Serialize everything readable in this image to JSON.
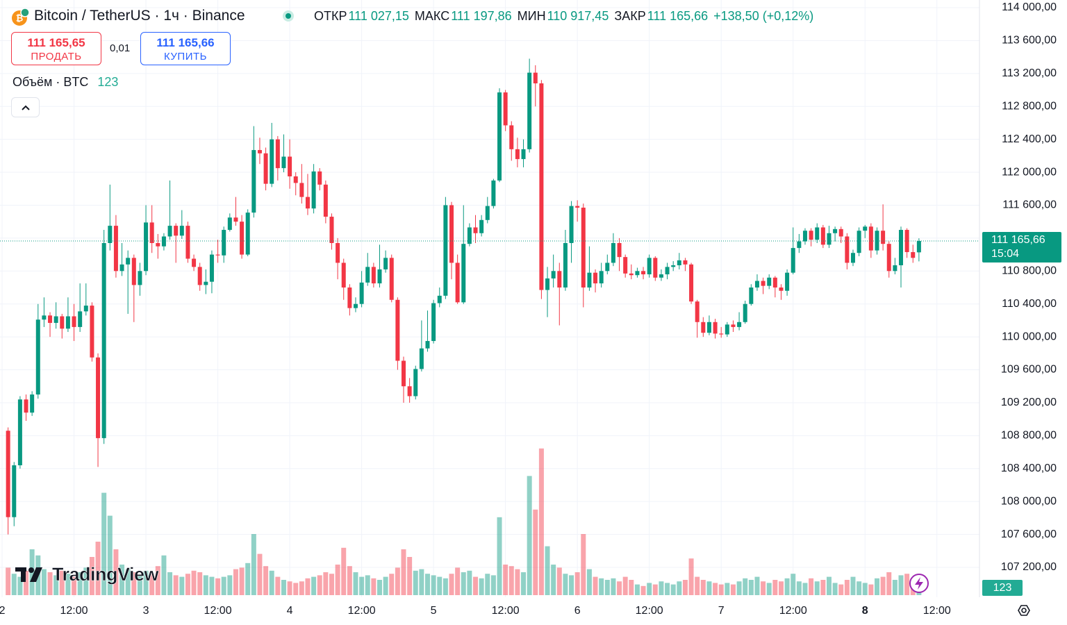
{
  "header": {
    "symbol": "Bitcoin / TetherUS · 1ч · Binance",
    "ohlc": [
      {
        "label": "ОТКР",
        "value": "111 027,15"
      },
      {
        "label": "МАКС",
        "value": "111 197,86"
      },
      {
        "label": "МИН",
        "value": "110 917,45"
      },
      {
        "label": "ЗАКР",
        "value": "111 165,66"
      }
    ],
    "change": "+138,50 (+0,12%)"
  },
  "trade": {
    "sell_price": "111 165,65",
    "sell": "ПРОДАТЬ",
    "spread": "0,01",
    "buy_price": "111 165,66",
    "buy": "КУПИТЬ"
  },
  "volume_legend": {
    "label": "Объём · BTC",
    "value": "123"
  },
  "logo": "TradingView",
  "price_tag": {
    "price": "111 165,66",
    "countdown": "15:04"
  },
  "volume_tag": "123",
  "chart_data": {
    "type": "candlestick",
    "open": [
      108860,
      107810,
      108440,
      109240,
      109080,
      109300,
      110210,
      110260,
      110170,
      110250,
      110100,
      110250,
      110120,
      110310,
      110380,
      109750,
      108770,
      111140,
      111350,
      110800,
      110880,
      110960,
      110630,
      110800,
      111390,
      111140,
      111100,
      111220,
      111350,
      111230,
      111350,
      110950,
      110850,
      110630,
      110670,
      111000,
      110990,
      111300,
      111450,
      111400,
      111000,
      111510,
      112270,
      112230,
      111860,
      112400,
      112050,
      112190,
      111950,
      111870,
      111700,
      111560,
      112010,
      111850,
      111460,
      111140,
      110900,
      110600,
      110350,
      110400,
      110660,
      110850,
      110650,
      110820,
      110960,
      110450,
      109710,
      109400,
      109280,
      109610,
      109860,
      109950,
      110410,
      110500,
      111600,
      110900,
      110420,
      111130,
      111330,
      111260,
      111420,
      111590,
      111900,
      112970,
      112570,
      112280,
      112160,
      112280,
      113210,
      113080,
      110570,
      110710,
      110800,
      110600,
      111140,
      111590,
      111570,
      110600,
      110780,
      110650,
      110800,
      110900,
      111140,
      110970,
      110770,
      110750,
      110800,
      110760,
      110960,
      110720,
      110760,
      110850,
      110870,
      110930,
      110880,
      110430,
      110180,
      110050,
      110180,
      110040,
      110030,
      110150,
      110120,
      110180,
      110400,
      110600,
      110680,
      110620,
      110720,
      110600,
      110560,
      110780,
      111080,
      111160,
      111290,
      111180,
      111330,
      111120,
      111260,
      111310,
      111220,
      110900,
      111020,
      111290,
      111340,
      111050,
      111290,
      111130,
      110800,
      110870,
      111300,
      111030,
      111027.15
    ],
    "high": [
      108900,
      108480,
      109280,
      109300,
      109340,
      110400,
      110480,
      110300,
      110420,
      110280,
      110480,
      110400,
      110650,
      110650,
      110420,
      109800,
      111300,
      111850,
      111480,
      111140,
      111050,
      111000,
      110900,
      111600,
      111600,
      111250,
      111260,
      111900,
      111380,
      111540,
      111400,
      111000,
      110900,
      110820,
      111050,
      111180,
      111340,
      111500,
      111700,
      111480,
      111550,
      112560,
      112420,
      112300,
      112600,
      112440,
      112460,
      112400,
      112000,
      112100,
      111980,
      112100,
      112050,
      111900,
      111500,
      111200,
      110950,
      110640,
      110480,
      110800,
      111020,
      110900,
      111120,
      111050,
      111000,
      110480,
      109760,
      109500,
      109650,
      110200,
      110320,
      110450,
      110600,
      111700,
      111640,
      111000,
      111600,
      111380,
      111480,
      111480,
      111700,
      111920,
      113020,
      113000,
      112620,
      112420,
      112400,
      113380,
      113300,
      113120,
      110850,
      111000,
      110900,
      111300,
      111650,
      111660,
      111620,
      111100,
      110820,
      110900,
      111000,
      111260,
      111200,
      111000,
      110880,
      110840,
      110850,
      111000,
      110980,
      110820,
      110900,
      110920,
      111020,
      110960,
      110900,
      110450,
      110240,
      110260,
      110220,
      110120,
      110180,
      110200,
      110300,
      110440,
      110640,
      110760,
      110720,
      110760,
      110740,
      110640,
      110820,
      111330,
      111250,
      111320,
      111320,
      111380,
      111360,
      111350,
      111340,
      111340,
      111260,
      111060,
      111330,
      111360,
      111380,
      111330,
      111610,
      111160,
      110960,
      111340,
      111320,
      111120,
      111197.86
    ],
    "low": [
      107600,
      107700,
      108400,
      108980,
      109040,
      109250,
      110120,
      110000,
      110100,
      109980,
      110060,
      109950,
      110060,
      110260,
      109700,
      108420,
      108700,
      111050,
      110720,
      110740,
      110280,
      110180,
      110500,
      110750,
      111020,
      110950,
      111050,
      111180,
      110900,
      111190,
      110900,
      110800,
      110560,
      110520,
      110530,
      110900,
      110900,
      111280,
      111350,
      110950,
      110980,
      111450,
      112100,
      111780,
      111820,
      111900,
      112000,
      111800,
      111720,
      111620,
      111480,
      111500,
      111780,
      111380,
      111060,
      110700,
      110450,
      110260,
      110300,
      110360,
      110620,
      110600,
      110600,
      110780,
      110420,
      109600,
      109200,
      109200,
      109240,
      109580,
      109820,
      109920,
      110360,
      110460,
      110700,
      110400,
      110400,
      111100,
      111140,
      111220,
      111380,
      111560,
      111880,
      112500,
      112140,
      112060,
      112060,
      112240,
      112800,
      110460,
      110240,
      110600,
      110140,
      110560,
      110900,
      111400,
      110360,
      110560,
      110540,
      110600,
      110760,
      110860,
      110800,
      110720,
      110700,
      110720,
      110700,
      110720,
      110680,
      110680,
      110700,
      110800,
      110820,
      110800,
      110400,
      109990,
      110000,
      110020,
      109980,
      109990,
      110000,
      110060,
      110080,
      110160,
      110380,
      110560,
      110520,
      110580,
      110480,
      110450,
      110500,
      110760,
      111020,
      111120,
      111100,
      111140,
      111080,
      111080,
      111160,
      111140,
      110820,
      110860,
      110980,
      111200,
      110960,
      111000,
      111050,
      110720,
      110760,
      110600,
      110960,
      110900,
      110917.45
    ],
    "close": [
      107810,
      108440,
      109240,
      109080,
      109300,
      110210,
      110260,
      110170,
      110250,
      110100,
      110250,
      110120,
      110310,
      110380,
      109750,
      108770,
      111140,
      111350,
      110800,
      110880,
      110960,
      110630,
      110800,
      111390,
      111140,
      111100,
      111220,
      111350,
      111230,
      111350,
      110950,
      110850,
      110630,
      110670,
      111000,
      110990,
      111300,
      111450,
      111400,
      111000,
      111510,
      112270,
      112230,
      111860,
      112400,
      112050,
      112190,
      111950,
      111870,
      111700,
      111560,
      112010,
      111850,
      111460,
      111140,
      110900,
      110600,
      110350,
      110400,
      110660,
      110850,
      110650,
      110820,
      110960,
      110450,
      109710,
      109400,
      109280,
      109610,
      109860,
      109950,
      110410,
      110500,
      111600,
      110900,
      110420,
      111130,
      111330,
      111260,
      111420,
      111590,
      111900,
      112970,
      112570,
      112280,
      112160,
      112280,
      113210,
      113080,
      110570,
      110710,
      110800,
      110600,
      111140,
      111590,
      111570,
      110600,
      110780,
      110650,
      110800,
      110900,
      111140,
      110970,
      110770,
      110750,
      110800,
      110760,
      110960,
      110720,
      110760,
      110850,
      110870,
      110930,
      110880,
      110430,
      110180,
      110050,
      110180,
      110040,
      110030,
      110150,
      110120,
      110180,
      110400,
      110600,
      110680,
      110620,
      110720,
      110600,
      110560,
      110780,
      111080,
      111160,
      111290,
      111180,
      111330,
      111120,
      111260,
      111310,
      111220,
      110900,
      111020,
      111290,
      111340,
      111050,
      111290,
      111130,
      110800,
      110870,
      111300,
      111030,
      110960,
      111165.66
    ],
    "volume": [
      180,
      140,
      120,
      160,
      300,
      260,
      170,
      150,
      130,
      160,
      140,
      120,
      150,
      180,
      250,
      350,
      670,
      520,
      300,
      200,
      170,
      150,
      130,
      160,
      140,
      190,
      260,
      150,
      130,
      120,
      140,
      160,
      150,
      130,
      120,
      110,
      120,
      130,
      170,
      180,
      210,
      400,
      270,
      190,
      160,
      120,
      100,
      90,
      80,
      90,
      110,
      120,
      130,
      150,
      140,
      200,
      310,
      190,
      150,
      120,
      130,
      110,
      100,
      120,
      140,
      180,
      300,
      250,
      160,
      170,
      140,
      130,
      120,
      110,
      140,
      180,
      150,
      160,
      120,
      110,
      140,
      130,
      510,
      200,
      190,
      170,
      150,
      780,
      560,
      960,
      320,
      200,
      180,
      140,
      130,
      150,
      400,
      170,
      120,
      110,
      100,
      110,
      90,
      120,
      100,
      70,
      60,
      80,
      70,
      90,
      80,
      70,
      90,
      100,
      240,
      120,
      100,
      90,
      80,
      70,
      80,
      70,
      90,
      110,
      100,
      120,
      90,
      80,
      100,
      90,
      110,
      140,
      90,
      80,
      110,
      90,
      100,
      120,
      80,
      70,
      100,
      120,
      90,
      80,
      70,
      110,
      120,
      150,
      100,
      130,
      140,
      110,
      123
    ],
    "up_color": "#089981",
    "down_color": "#f23645",
    "ylim": [
      107200,
      114000
    ],
    "yticks": [
      {
        "value": 107200,
        "label": "107 200,00"
      },
      {
        "value": 107600,
        "label": "107 600,00"
      },
      {
        "value": 108000,
        "label": "108 000,00"
      },
      {
        "value": 108400,
        "label": "108 400,00"
      },
      {
        "value": 108800,
        "label": "108 800,00"
      },
      {
        "value": 109200,
        "label": "109 200,00"
      },
      {
        "value": 109600,
        "label": "109 600,00"
      },
      {
        "value": 110000,
        "label": "110 000,00"
      },
      {
        "value": 110400,
        "label": "110 400,00"
      },
      {
        "value": 110800,
        "label": "110 800,00"
      },
      {
        "value": 111200,
        "label": "111 200,00"
      },
      {
        "value": 111600,
        "label": "111 600,00"
      },
      {
        "value": 112000,
        "label": "112 000,00"
      },
      {
        "value": 112400,
        "label": "112 400,00"
      },
      {
        "value": 112800,
        "label": "112 800,00"
      },
      {
        "value": 113200,
        "label": "113 200,00"
      },
      {
        "value": 113600,
        "label": "113 600,00"
      },
      {
        "value": 114000,
        "label": "114 000,00"
      }
    ],
    "xlim": [
      -1.35,
      162.1
    ],
    "xticks": [
      {
        "value": -1,
        "label": "2"
      },
      {
        "value": 11,
        "label": "12:00"
      },
      {
        "value": 23,
        "label": "3"
      },
      {
        "value": 35,
        "label": "12:00"
      },
      {
        "value": 47,
        "label": "4"
      },
      {
        "value": 59,
        "label": "12:00"
      },
      {
        "value": 71,
        "label": "5"
      },
      {
        "value": 83,
        "label": "12:00"
      },
      {
        "value": 95,
        "label": "6"
      },
      {
        "value": 107,
        "label": "12:00"
      },
      {
        "value": 119,
        "label": "7"
      },
      {
        "value": 131,
        "label": "12:00"
      },
      {
        "value": 143,
        "label": "8",
        "bold": true
      },
      {
        "value": 155,
        "label": "12:00"
      }
    ],
    "volume_lim": [
      0,
      1000
    ],
    "grid": true
  }
}
